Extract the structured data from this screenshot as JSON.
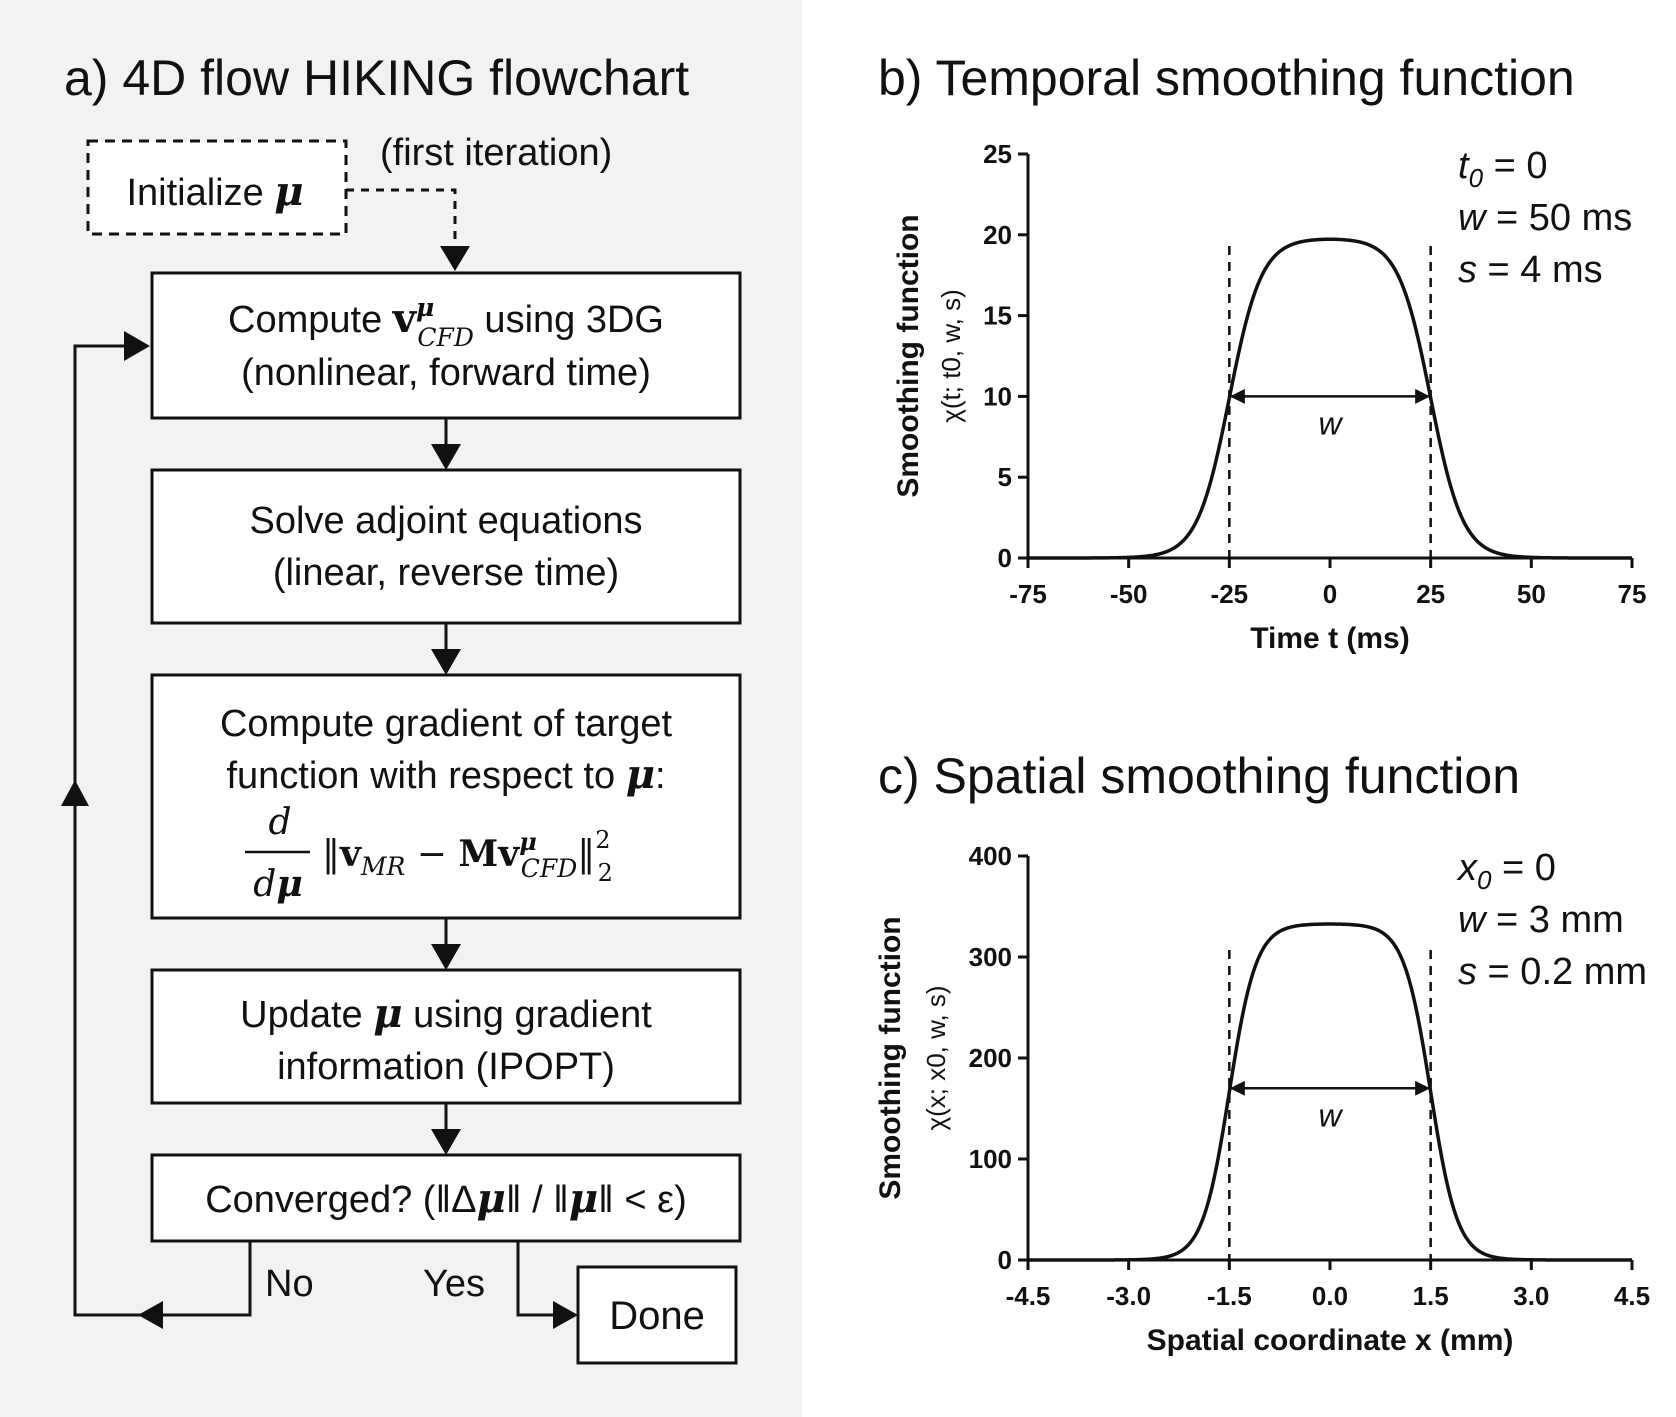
{
  "colors": {
    "left_panel_bg": "#f2f2f2",
    "page_bg": "#ffffff",
    "ink": "#111111"
  },
  "flowchart": {
    "title": "a) 4D flow HIKING flowchart",
    "init_label": "Initialize ",
    "init_symbol": "μ",
    "first_iteration_note": "(first iteration)",
    "step_compute_prefix": "Compute ",
    "step_compute_math_base": "v",
    "step_compute_math_sup": "μ",
    "step_compute_math_sub": "CFD",
    "step_compute_suffix": " using 3DG",
    "step_compute_line2": "(nonlinear, forward time)",
    "step_adjoint_line1": "Solve adjoint equations",
    "step_adjoint_line2": "(linear, reverse time)",
    "step_gradient_line1": "Compute gradient of target",
    "step_gradient_line2": "function with respect to ",
    "step_gradient_line2_symbol": "μ",
    "step_gradient_line2_end": ":",
    "gradient_formula": {
      "frac_num": "d",
      "frac_den_d": "d",
      "frac_den_mu": "μ",
      "norm_open": "‖",
      "v": "v",
      "v_sub_mr": "MR",
      "minus": " − ",
      "m": "M",
      "v2": "v",
      "v2_sup": "μ",
      "v2_sub": "CFD",
      "norm_close": "‖",
      "sup2": "2",
      "sub2": "2"
    },
    "step_update_prefix": "Update ",
    "step_update_symbol": "μ",
    "step_update_suffix": " using gradient",
    "step_update_line2": "information (IPOPT)",
    "step_converged": {
      "prefix": "Converged? (‖Δ",
      "mu1": "μ",
      "mid": "‖ / ‖",
      "mu2": "μ",
      "suffix": "‖ < ε)"
    },
    "branch_no": "No",
    "branch_yes": "Yes",
    "done_label": "Done"
  },
  "chart_data": [
    {
      "type": "line",
      "title": "b) Temporal smoothing function",
      "xlabel": "Time t (ms)",
      "ylabel_line1": "Smoothing function",
      "ylabel_line2": "χ(t; t0, w, s)",
      "xlim": [
        -75,
        75
      ],
      "ylim": [
        0,
        25
      ],
      "xticks": [
        -75,
        -50,
        -25,
        0,
        25,
        50,
        75
      ],
      "xtick_labels": [
        "-75",
        "-50",
        "-25",
        "0",
        "25",
        "50",
        "75"
      ],
      "yticks": [
        0,
        5,
        10,
        15,
        20,
        25
      ],
      "ytick_labels": [
        "0",
        "5",
        "10",
        "15",
        "20",
        "25"
      ],
      "function": {
        "kind": "double-sigmoid",
        "center": 0,
        "width": 50,
        "steepness": 4,
        "peak": 19.8
      },
      "vlines": [
        -25,
        25
      ],
      "arrow": {
        "from": -25,
        "to": 25,
        "y": 10,
        "label": "w"
      },
      "params": [
        {
          "sym": "t",
          "sub": "0",
          "rest": " = 0"
        },
        {
          "sym": "w",
          "sub": "",
          "rest": " = 50 ms"
        },
        {
          "sym": "s",
          "sub": "",
          "rest": " = 4 ms"
        }
      ],
      "grid": false
    },
    {
      "type": "line",
      "title": "c) Spatial smoothing function",
      "xlabel": "Spatial coordinate x (mm)",
      "ylabel_line1": "Smoothing function",
      "ylabel_line2": "χ(x; x0, w, s)",
      "xlim": [
        -4.5,
        4.5
      ],
      "ylim": [
        0,
        400
      ],
      "xticks": [
        -4.5,
        -3.0,
        -1.5,
        0.0,
        1.5,
        3.0,
        4.5
      ],
      "xtick_labels": [
        "-4.5",
        "-3.0",
        "-1.5",
        "0.0",
        "1.5",
        "3.0",
        "4.5"
      ],
      "yticks": [
        0,
        100,
        200,
        300,
        400
      ],
      "ytick_labels": [
        "0",
        "100",
        "200",
        "300",
        "400"
      ],
      "function": {
        "kind": "double-sigmoid",
        "center": 0,
        "width": 3,
        "steepness": 0.2,
        "peak": 333
      },
      "vlines": [
        -1.5,
        1.5
      ],
      "arrow": {
        "from": -1.5,
        "to": 1.5,
        "y": 170,
        "label": "w"
      },
      "params": [
        {
          "sym": "x",
          "sub": "0",
          "rest": " = 0"
        },
        {
          "sym": "w",
          "sub": "",
          "rest": " = 3 mm"
        },
        {
          "sym": "s",
          "sub": "",
          "rest": " = 0.2 mm"
        }
      ],
      "grid": false
    }
  ]
}
